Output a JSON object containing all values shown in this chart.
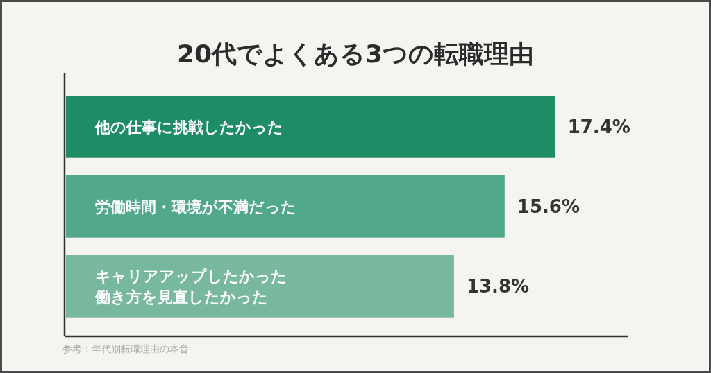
{
  "chart_data": {
    "type": "bar",
    "orientation": "horizontal",
    "title": "20代でよくある3つの転職理由",
    "categories": [
      "他の仕事に挑戦したかった",
      "労働時間・環境が不満だった",
      "キャリアアップしたかった働き方を見直したかった"
    ],
    "values": [
      17.4,
      15.6,
      13.8
    ],
    "colors": [
      "#1e8c64",
      "#52a88a",
      "#78b89e"
    ],
    "value_labels": [
      "17.4%",
      "15.6%",
      "13.8%"
    ],
    "xlim": [
      0,
      20
    ],
    "annotations": [
      "参考：年代別転職理由の本音"
    ]
  }
}
